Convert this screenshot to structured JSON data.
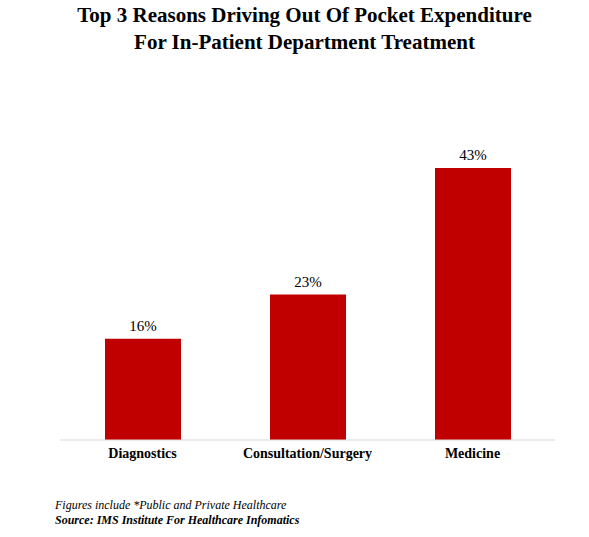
{
  "chart_data": {
    "type": "bar",
    "title": "Top 3 Reasons Driving Out Of Pocket Expenditure\nFor In-Patient Department Treatment",
    "categories": [
      "Diagnostics",
      "Consultation/Surgery",
      "Medicine"
    ],
    "values": [
      16,
      23,
      43
    ],
    "value_labels": [
      "16%",
      "23%",
      "43%"
    ],
    "color": "#c00000",
    "data_labels": true,
    "tick_labels": "x",
    "grid": false,
    "annotations": [
      "Figures include *Public and Private Healthcare",
      "Source: IMS Institute For Healthcare Infomatics"
    ]
  }
}
